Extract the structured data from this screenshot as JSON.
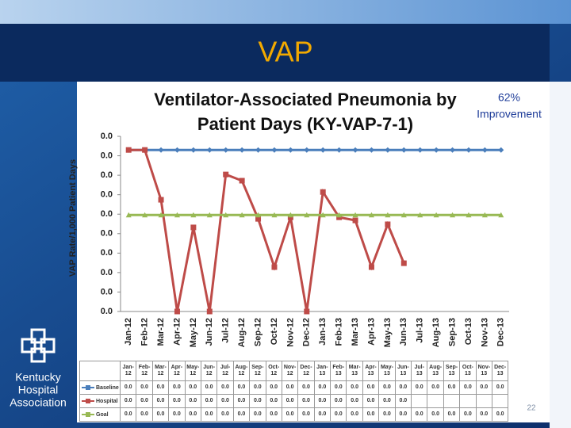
{
  "slide": {
    "heading": "VAP",
    "callout": [
      "62%",
      "Improvement"
    ],
    "logo_text": [
      "Kentucky",
      "Hospital",
      "Association"
    ],
    "page_number": "22"
  },
  "chart_data": {
    "type": "line",
    "title": [
      "Ventilator-Associated Pneumonia by",
      "Patient Days (KY-VAP-7-1)"
    ],
    "y_label": "VAP Rate/1,000 Patient Days",
    "categories": [
      "Jan-12",
      "Feb-12",
      "Mar-12",
      "Apr-12",
      "May-12",
      "Jun-12",
      "Jul-12",
      "Aug-12",
      "Sep-12",
      "Oct-12",
      "Nov-12",
      "Dec-12",
      "Jan-13",
      "Feb-13",
      "Mar-13",
      "Apr-13",
      "May-13",
      "Jun-13",
      "Jul-13",
      "Aug-13",
      "Sep-13",
      "Oct-13",
      "Nov-13",
      "Dec-13"
    ],
    "ylim": [
      0,
      0.045
    ],
    "yticks": [
      {
        "value": 0,
        "label": "0.0"
      },
      {
        "value": 0.005,
        "label": "0.0"
      },
      {
        "value": 0.01,
        "label": "0.0"
      },
      {
        "value": 0.015,
        "label": "0.0"
      },
      {
        "value": 0.02,
        "label": "0.0"
      },
      {
        "value": 0.025,
        "label": "0.0"
      },
      {
        "value": 0.03,
        "label": "0.0"
      },
      {
        "value": 0.035,
        "label": "0.0"
      },
      {
        "value": 0.04,
        "label": "0.0"
      },
      {
        "value": 0.045,
        "label": "0.0"
      }
    ],
    "grid": false,
    "series": [
      {
        "name": "Baseline",
        "color": "#4a7ebb",
        "marker": "diamond",
        "values": [
          0.0415,
          0.0415,
          0.0415,
          0.0415,
          0.0415,
          0.0415,
          0.0415,
          0.0415,
          0.0415,
          0.0415,
          0.0415,
          0.0415,
          0.0415,
          0.0415,
          0.0415,
          0.0415,
          0.0415,
          0.0415,
          0.0415,
          0.0415,
          0.0415,
          0.0415,
          0.0415,
          0.0415
        ],
        "value_labels": [
          "0.0",
          "0.0",
          "0.0",
          "0.0",
          "0.0",
          "0.0",
          "0.0",
          "0.0",
          "0.0",
          "0.0",
          "0.0",
          "0.0",
          "0.0",
          "0.0",
          "0.0",
          "0.0",
          "0.0",
          "0.0",
          "0.0",
          "0.0",
          "0.0",
          "0.0",
          "0.0",
          "0.0"
        ]
      },
      {
        "name": "Hospital",
        "color": "#be4b48",
        "marker": "square",
        "values": [
          0.0415,
          0.0415,
          0.0287,
          0,
          0.0216,
          0,
          0.0352,
          0.0336,
          0.0238,
          0.0114,
          0.0242,
          0,
          0.0307,
          0.0242,
          0.0234,
          0.0114,
          0.0224,
          0.0124,
          null,
          null,
          null,
          null,
          null,
          null
        ],
        "value_labels": [
          "0.0",
          "0.0",
          "0.0",
          "0.0",
          "0.0",
          "0.0",
          "0.0",
          "0.0",
          "0.0",
          "0.0",
          "0.0",
          "0.0",
          "0.0",
          "0.0",
          "0.0",
          "0.0",
          "0.0",
          "0.0",
          null,
          null,
          null,
          null,
          null,
          null
        ]
      },
      {
        "name": "Goal",
        "color": "#98b954",
        "marker": "triangle",
        "values": [
          0.0248,
          0.0248,
          0.0248,
          0.0248,
          0.0248,
          0.0248,
          0.0248,
          0.0248,
          0.0248,
          0.0248,
          0.0248,
          0.0248,
          0.0248,
          0.0248,
          0.0248,
          0.0248,
          0.0248,
          0.0248,
          0.0248,
          0.0248,
          0.0248,
          0.0248,
          0.0248,
          0.0248
        ],
        "value_labels": [
          "0.0",
          "0.0",
          "0.0",
          "0.0",
          "0.0",
          "0.0",
          "0.0",
          "0.0",
          "0.0",
          "0.0",
          "0.0",
          "0.0",
          "0.0",
          "0.0",
          "0.0",
          "0.0",
          "0.0",
          "0.0",
          "0.0",
          "0.0",
          "0.0",
          "0.0",
          "0.0",
          "0.0"
        ]
      }
    ]
  }
}
